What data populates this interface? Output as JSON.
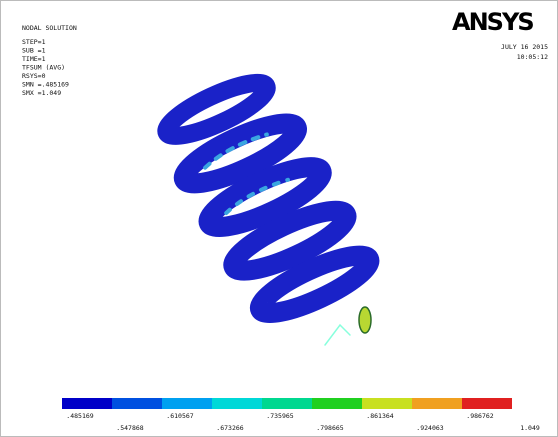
{
  "header": {
    "title": "NODAL SOLUTION",
    "lines": [
      "STEP=1",
      "SUB =1",
      "TIME=1",
      "TFSUM    (AVG)",
      "RSYS=0",
      "SMN =.485169",
      "SMX =1.049"
    ]
  },
  "logo": {
    "text": "ANSYS"
  },
  "timestamp": {
    "date": "JULY 16 2015",
    "time": "10:05:12"
  },
  "legend": {
    "labels": [
      ".485169",
      ".547868",
      ".610567",
      ".673266",
      ".735965",
      ".798665",
      ".861364",
      ".924063",
      ".986762",
      "1.049"
    ]
  }
}
